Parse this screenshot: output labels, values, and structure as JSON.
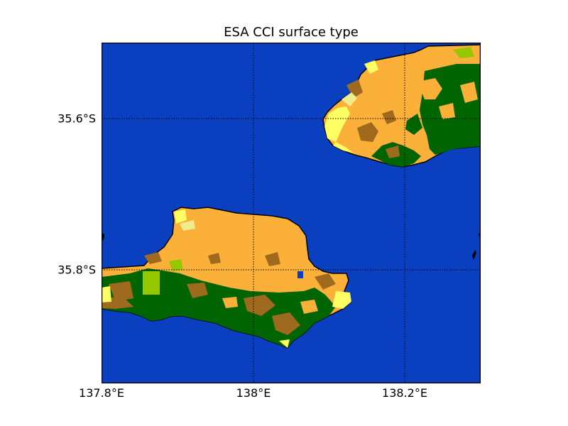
{
  "title": "ESA CCI surface type",
  "map": {
    "projection": "lat-lon grid",
    "extent": {
      "lon_min": 137.8,
      "lon_max": 138.3,
      "lat_min": -35.95,
      "lat_max": -35.5
    },
    "gridlines": "dotted black",
    "colors": {
      "water": "#0a3fbf",
      "cropland": "#fbb03a",
      "forest": "#006400",
      "shrubland": "#a06a1e",
      "grassland": "#96c800",
      "sparse": "#ffff64",
      "beach": "#f0ec8c",
      "coastline": "#000000"
    }
  },
  "axes": {
    "x_ticks": [
      "137.8°E",
      "138°E",
      "138.2°E"
    ],
    "y_ticks": [
      "35.6°S",
      "35.8°S"
    ]
  }
}
